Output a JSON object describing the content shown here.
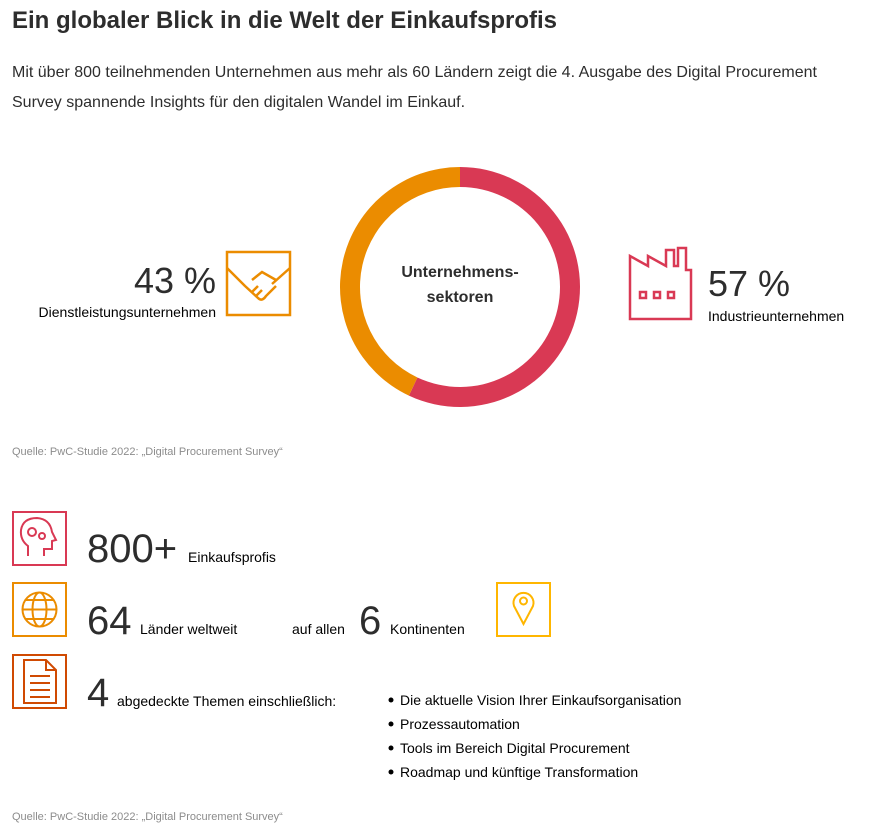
{
  "title": "Ein globaler Blick in die Welt der Einkaufsprofis",
  "intro": "Mit über 800 teilnehmenden Unternehmen aus mehr als 60 Ländern zeigt die 4. Ausgabe des Digital Procurement Survey spannende Insights für den digitalen Wandel im Einkauf.",
  "chart_data": {
    "type": "pie",
    "donut": true,
    "center_label": [
      "Unternehmens-",
      "sektoren"
    ],
    "categories": [
      "Industrieunternehmen",
      "Dienstleistungsunternehmen"
    ],
    "values": [
      57,
      43
    ],
    "value_labels": [
      "57 %",
      "43 %"
    ],
    "colors": [
      "#d93954",
      "#eb8c00"
    ]
  },
  "source_1": "Quelle: PwC-Studie 2022: „Digital Procurement Survey“",
  "stats": {
    "profis": {
      "number": "800+",
      "label": "Einkaufsprofis"
    },
    "countries": {
      "number": 64,
      "label": "Länder weltweit"
    },
    "continents": {
      "prefix": "auf allen",
      "number": 6,
      "label": "Kontinenten"
    },
    "topics": {
      "number": 4,
      "label": "abgedeckte Themen einschließlich:",
      "items": [
        "Die aktuelle Vision Ihrer Einkaufsorganisation",
        "Prozessautomation",
        "Tools im Bereich Digital Procurement",
        "Roadmap und künftige Transformation"
      ]
    }
  },
  "source_2": "Quelle: PwC-Studie 2022: „Digital Procurement Survey“"
}
